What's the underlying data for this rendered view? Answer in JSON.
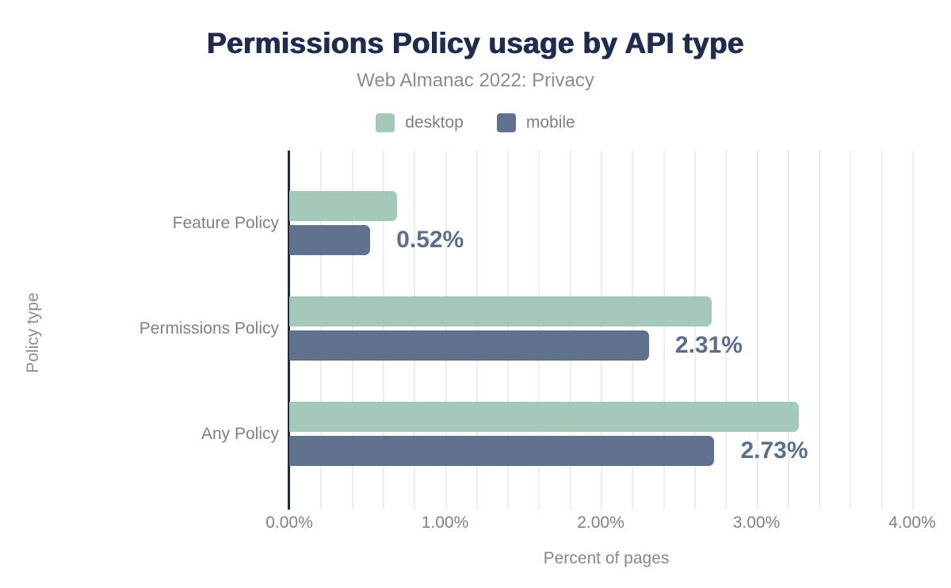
{
  "header": {
    "title": "Permissions Policy usage by API type",
    "subtitle": "Web Almanac 2022: Privacy"
  },
  "legend": {
    "items": [
      {
        "label": "desktop",
        "color": "#a4c9b8"
      },
      {
        "label": "mobile",
        "color": "#5f718d"
      }
    ]
  },
  "chart_data": {
    "type": "bar",
    "orientation": "horizontal",
    "title": "Permissions Policy usage by API type",
    "subtitle": "Web Almanac 2022: Privacy",
    "categories": [
      "Feature Policy",
      "Permissions Policy",
      "Any Policy"
    ],
    "series": [
      {
        "name": "desktop",
        "color": "#a4c9b8",
        "values": [
          0.69,
          2.71,
          3.27
        ]
      },
      {
        "name": "mobile",
        "color": "#5f718d",
        "values": [
          0.52,
          2.31,
          2.73
        ],
        "data_labels": [
          "0.52%",
          "2.31%",
          "2.73%"
        ]
      }
    ],
    "xlabel": "Percent of pages",
    "ylabel": "Policy type",
    "xlim": [
      0,
      4.07
    ],
    "x_ticks": [
      {
        "value": 0,
        "label": "0.00%"
      },
      {
        "value": 1,
        "label": "1.00%"
      },
      {
        "value": 2,
        "label": "2.00%"
      },
      {
        "value": 3,
        "label": "3.00%"
      },
      {
        "value": 4,
        "label": "4.00%"
      }
    ],
    "grid": {
      "axis": "x",
      "minor_step": 0.2,
      "color": "#ededed",
      "legend_position": "top"
    },
    "colors": {
      "axis_line": "#1c2944",
      "title": "#1f2b50",
      "subtitle": "#878c95",
      "category_label": "#7b818a",
      "tick_label": "#7b818a",
      "axis_title": "#84888e",
      "value_label": "#5d6e8b"
    }
  }
}
